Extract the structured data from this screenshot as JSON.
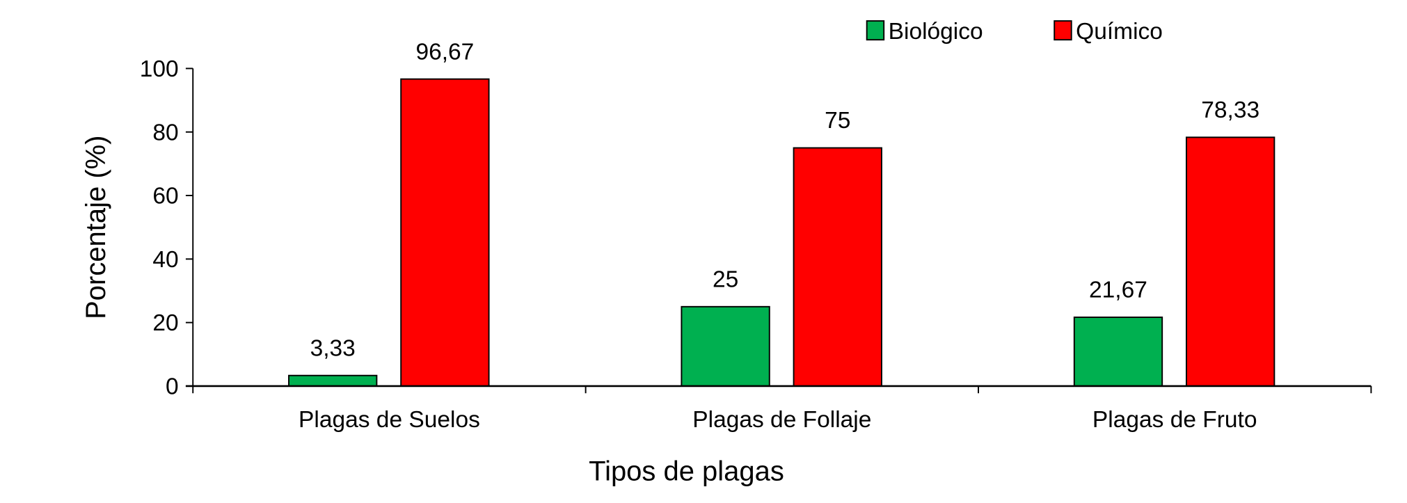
{
  "chart_data": {
    "type": "bar",
    "title": "",
    "xlabel": "Tipos de plagas",
    "ylabel": "Porcentaje (%)",
    "ylim": [
      0,
      100
    ],
    "yticks": [
      "0",
      "20",
      "40",
      "60",
      "80",
      "100"
    ],
    "grid": false,
    "legend_position": "top-right",
    "categories": [
      "Plagas de Suelos",
      "Plagas de Follaje",
      "Plagas de Fruto"
    ],
    "series": [
      {
        "name": "Biológico",
        "color": "#00B050",
        "values": [
          3.33,
          25,
          21.67
        ],
        "labels": [
          "3,33",
          "25",
          "21,67"
        ]
      },
      {
        "name": "Químico",
        "color": "#FF0000",
        "values": [
          96.67,
          75,
          78.33
        ],
        "labels": [
          "96,67",
          "75",
          "78,33"
        ]
      }
    ]
  }
}
